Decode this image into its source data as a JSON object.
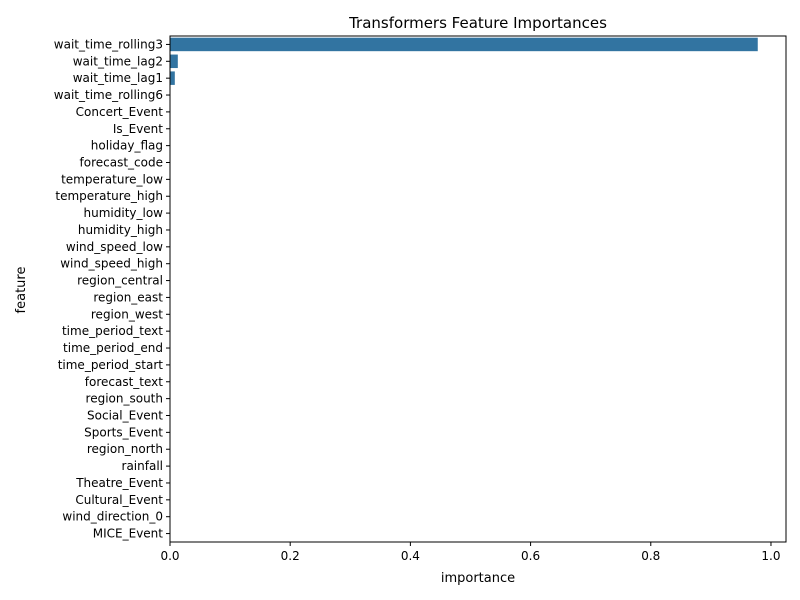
{
  "chart_data": {
    "type": "bar",
    "orientation": "horizontal",
    "title": "Transformers Feature Importances",
    "xlabel": "importance",
    "ylabel": "feature",
    "xlim": [
      0.0,
      1.025
    ],
    "xticks": [
      0.0,
      0.2,
      0.4,
      0.6,
      0.8,
      1.0
    ],
    "xtick_labels": [
      "0.0",
      "0.2",
      "0.4",
      "0.6",
      "0.8",
      "1.0"
    ],
    "grid": false,
    "bar_color": "#3274a1",
    "categories": [
      "wait_time_rolling3",
      "wait_time_lag2",
      "wait_time_lag1",
      "wait_time_rolling6",
      "Concert_Event",
      "Is_Event",
      "holiday_flag",
      "forecast_code",
      "temperature_low",
      "temperature_high",
      "humidity_low",
      "humidity_high",
      "wind_speed_low",
      "wind_speed_high",
      "region_central",
      "region_east",
      "region_west",
      "time_period_text",
      "time_period_end",
      "time_period_start",
      "forecast_text",
      "region_south",
      "Social_Event",
      "Sports_Event",
      "region_north",
      "rainfall",
      "Theatre_Event",
      "Cultural_Event",
      "wind_direction_0",
      "MICE_Event"
    ],
    "values": [
      0.978,
      0.013,
      0.008,
      0.0005,
      0.0003,
      0.0002,
      0.0002,
      0.0002,
      0.0001,
      0.0001,
      0.0001,
      0.0001,
      0.0001,
      0.0001,
      0.0001,
      0.0001,
      0.0001,
      0.0,
      0.0,
      0.0,
      0.0,
      0.0,
      0.0,
      0.0,
      0.0,
      0.0,
      0.0,
      0.0,
      0.0,
      0.0
    ]
  }
}
